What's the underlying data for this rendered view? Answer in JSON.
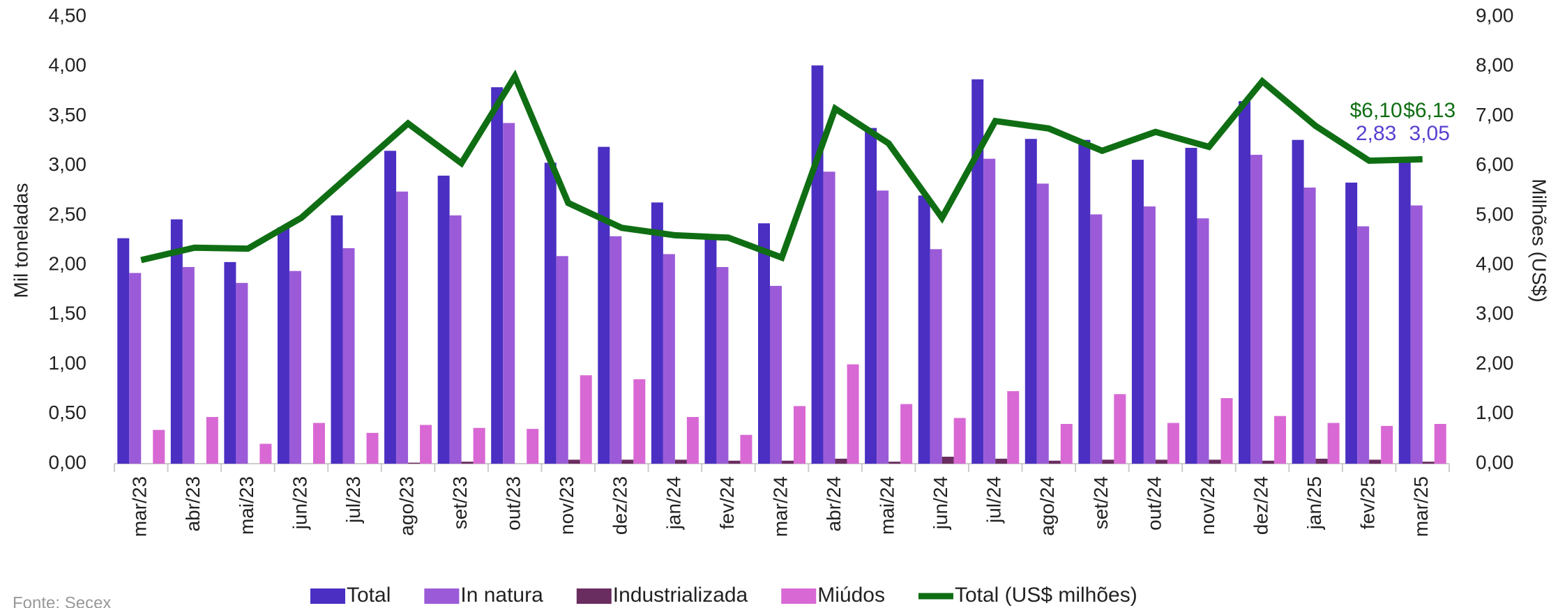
{
  "chart_data": {
    "type": "bar-line",
    "y_label": "Mil toneladas",
    "y2_label": "Milhões (US$)",
    "source": "Fonte: Secex",
    "categories": [
      "mar/23",
      "abr/23",
      "mai/23",
      "jun/23",
      "jul/23",
      "ago/23",
      "set/23",
      "out/23",
      "nov/23",
      "dez/23",
      "jan/24",
      "fev/24",
      "mar/24",
      "abr/24",
      "mai/24",
      "jun/24",
      "jul/24",
      "ago/24",
      "set/24",
      "out/24",
      "nov/24",
      "dez/24",
      "jan/25",
      "fev/25",
      "mar/25"
    ],
    "ylim": [
      0,
      4.5
    ],
    "yticks": [
      {
        "value": 0,
        "label": "0,00"
      },
      {
        "value": 0.5,
        "label": "0,50"
      },
      {
        "value": 1,
        "label": "1,00"
      },
      {
        "value": 1.5,
        "label": "1,50"
      },
      {
        "value": 2,
        "label": "2,00"
      },
      {
        "value": 2.5,
        "label": "2,50"
      },
      {
        "value": 3,
        "label": "3,00"
      },
      {
        "value": 3.5,
        "label": "3,50"
      },
      {
        "value": 4,
        "label": "4,00"
      },
      {
        "value": 4.5,
        "label": "4,50"
      }
    ],
    "y2lim": [
      0,
      9
    ],
    "y2ticks": [
      {
        "value": 0,
        "label": "0,00"
      },
      {
        "value": 1,
        "label": "1,00"
      },
      {
        "value": 2,
        "label": "2,00"
      },
      {
        "value": 3,
        "label": "3,00"
      },
      {
        "value": 4,
        "label": "4,00"
      },
      {
        "value": 5,
        "label": "5,00"
      },
      {
        "value": 6,
        "label": "6,00"
      },
      {
        "value": 7,
        "label": "7,00"
      },
      {
        "value": 8,
        "label": "8,00"
      },
      {
        "value": 9,
        "label": "9,00"
      }
    ],
    "series": [
      {
        "name": "Total",
        "type": "bar",
        "color": "#4a2fc2",
        "label_color": "#5a3fd0",
        "values": [
          2.27,
          2.46,
          2.03,
          2.38,
          2.5,
          3.15,
          2.9,
          3.79,
          3.03,
          3.19,
          2.63,
          2.31,
          2.42,
          4.01,
          3.38,
          2.7,
          3.87,
          3.27,
          3.26,
          3.06,
          3.18,
          3.65,
          3.26,
          2.83,
          3.05
        ],
        "value_labels": [
          null,
          null,
          null,
          null,
          null,
          null,
          null,
          null,
          null,
          null,
          null,
          null,
          null,
          null,
          null,
          null,
          null,
          null,
          null,
          null,
          null,
          null,
          null,
          "2,83",
          "3,05"
        ]
      },
      {
        "name": "In natura",
        "type": "bar",
        "color": "#9b5bd8",
        "values": [
          1.92,
          1.98,
          1.82,
          1.94,
          2.17,
          2.74,
          2.5,
          3.43,
          2.09,
          2.29,
          2.11,
          1.98,
          1.79,
          2.94,
          2.75,
          2.16,
          3.07,
          2.82,
          2.51,
          2.59,
          2.47,
          3.11,
          2.78,
          2.39,
          2.6
        ]
      },
      {
        "name": "Industrializada",
        "type": "bar",
        "color": "#6a2d60",
        "values": [
          0,
          0,
          0,
          0,
          0,
          0.01,
          0.02,
          0,
          0.04,
          0.04,
          0.04,
          0.03,
          0.03,
          0.05,
          0.02,
          0.07,
          0.05,
          0.03,
          0.04,
          0.04,
          0.04,
          0.03,
          0.05,
          0.04,
          0.02
        ]
      },
      {
        "name": "Miúdos",
        "type": "bar",
        "color": "#d868d4",
        "values": [
          0.34,
          0.47,
          0.2,
          0.41,
          0.31,
          0.39,
          0.36,
          0.35,
          0.89,
          0.85,
          0.47,
          0.29,
          0.58,
          1.0,
          0.6,
          0.46,
          0.73,
          0.4,
          0.7,
          0.41,
          0.66,
          0.48,
          0.41,
          0.38,
          0.4
        ]
      },
      {
        "name": "Total (US$ milhões)",
        "type": "line",
        "axis": "y2",
        "color": "#0f6e13",
        "values": [
          4.1,
          4.35,
          4.33,
          4.95,
          5.9,
          6.85,
          6.05,
          7.8,
          5.25,
          4.75,
          4.6,
          4.55,
          4.15,
          7.15,
          6.45,
          4.95,
          6.9,
          6.75,
          6.3,
          6.68,
          6.38,
          7.7,
          6.8,
          6.1,
          6.13
        ],
        "value_labels": [
          null,
          null,
          null,
          null,
          null,
          null,
          null,
          null,
          null,
          null,
          null,
          null,
          null,
          null,
          null,
          null,
          null,
          null,
          null,
          null,
          null,
          null,
          null,
          "$6,10",
          "$6,13"
        ]
      }
    ]
  }
}
